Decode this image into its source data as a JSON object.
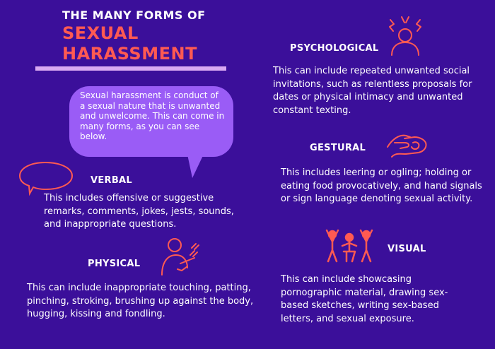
{
  "title": {
    "line1": "THE MANY FORMS OF",
    "line2": "SEXUAL",
    "line3": "HARASSMENT"
  },
  "intro": "Sexual harassment is conduct of a sexual nature that is unwanted and  unwelcome. This can come in many forms, as you can see below.",
  "sections": {
    "verbal": {
      "heading": "VERBAL",
      "text": "This includes offensive or suggestive remarks, comments, jokes, jests, sounds, and inappropriate questions.",
      "icon": "speech-bubble-icon"
    },
    "physical": {
      "heading": "PHYSICAL",
      "text": "This can include inappropriate touching, patting, pinching, stroking, brushing up against the body, hugging, kissing and fondling.",
      "icon": "touching-shoulder-icon"
    },
    "psychological": {
      "heading": "PSYCHOLOGICAL",
      "text": "This can include repeated unwanted social invitations, such as relentless proposals for dates or physical intimacy and unwanted constant texting.",
      "icon": "stressed-person-icon"
    },
    "gestural": {
      "heading": "GESTURAL",
      "text": "This includes leering or ogling; holding or eating food provocatively, and hand signals or sign language denoting sexual activity.",
      "icon": "hand-gesture-icon"
    },
    "visual": {
      "heading": "VISUAL",
      "text": "This can include showcasing pornographic material, drawing sex-based sketches, writing sex-based letters, and sexual exposure.",
      "icon": "group-figures-icon"
    }
  },
  "colors": {
    "background": "#3b0f9a",
    "accent": "#ff5a52",
    "bubble": "#9a5cf6",
    "rule": "#d9a9f2"
  }
}
